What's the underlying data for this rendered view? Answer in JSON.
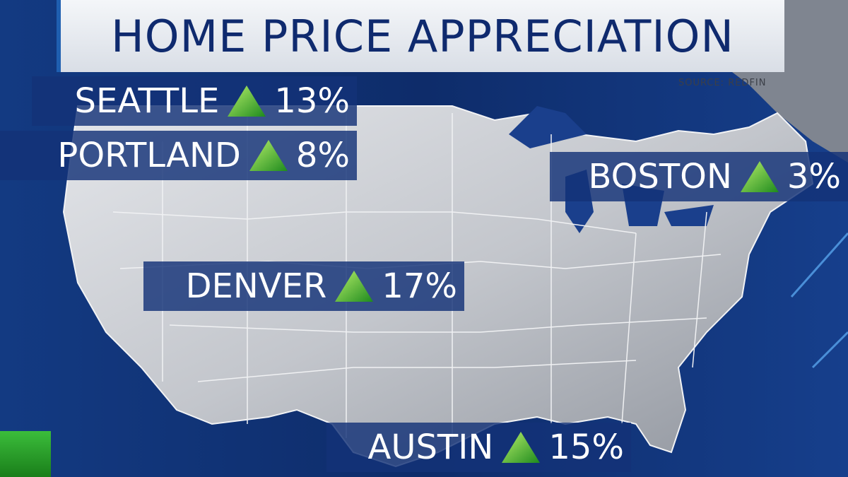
{
  "header": {
    "title": "HOME PRICE APPRECIATION",
    "source": "SOURCE:  REDFIN"
  },
  "cities": [
    {
      "name": "SEATTLE",
      "change": "13%"
    },
    {
      "name": "PORTLAND",
      "change": "8%"
    },
    {
      "name": "BOSTON",
      "change": "3%"
    },
    {
      "name": "DENVER",
      "change": "17%"
    },
    {
      "name": "AUSTIN",
      "change": "15%"
    }
  ]
}
